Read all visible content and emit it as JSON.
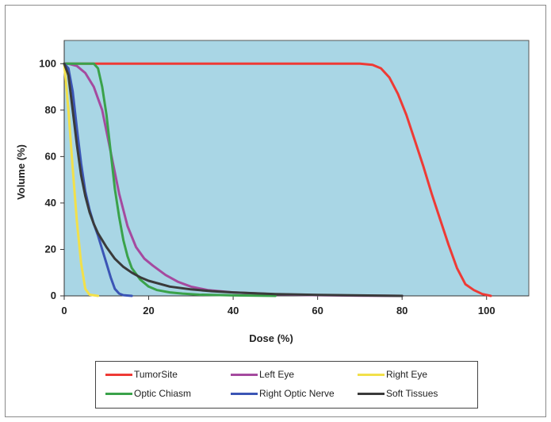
{
  "chart_data": {
    "type": "line",
    "title": "",
    "xlabel": "Dose (%)",
    "ylabel": "Volume (%)",
    "xlim": [
      0,
      110
    ],
    "ylim": [
      0,
      110
    ],
    "x_ticks": [
      0,
      20,
      40,
      60,
      80,
      100
    ],
    "y_ticks": [
      0,
      20,
      40,
      60,
      80,
      100
    ],
    "plot_background": "#a9d6e5",
    "grid": false,
    "legend_position": "bottom",
    "series": [
      {
        "name": "TumorSite",
        "color": "#ee3a35",
        "x": [
          0,
          10,
          30,
          50,
          70,
          73,
          75,
          77,
          79,
          81,
          83,
          85,
          87,
          89,
          91,
          93,
          95,
          97,
          99,
          101
        ],
        "y": [
          100,
          100,
          100,
          100,
          100,
          99.5,
          98,
          94,
          87,
          78,
          67,
          56,
          44,
          33,
          22,
          12,
          5,
          2.5,
          0.8,
          0
        ]
      },
      {
        "name": "Left Eye",
        "color": "#a54a9f",
        "x": [
          0,
          1,
          3,
          5,
          7,
          9,
          11,
          13,
          15,
          17,
          19,
          21,
          24,
          27,
          30,
          34,
          40,
          50,
          60,
          70,
          80
        ],
        "y": [
          100,
          100,
          99,
          96,
          90,
          80,
          62,
          44,
          30,
          21,
          16,
          13,
          9,
          6,
          4,
          2.5,
          1.5,
          0.7,
          0.3,
          0.1,
          0
        ]
      },
      {
        "name": "Right Eye",
        "color": "#f2e04a",
        "x": [
          0,
          1,
          2,
          3,
          4,
          5,
          6,
          8
        ],
        "y": [
          100,
          80,
          55,
          32,
          14,
          3,
          0.5,
          0
        ]
      },
      {
        "name": "Optic Chiasm",
        "color": "#3aa24a",
        "x": [
          0,
          4,
          7,
          8,
          9,
          10,
          11,
          12,
          13,
          14,
          15,
          16,
          18,
          20,
          22,
          25,
          28,
          32,
          40,
          50
        ],
        "y": [
          100,
          100,
          100,
          98,
          90,
          78,
          62,
          46,
          34,
          24,
          17,
          12,
          7,
          4,
          2.5,
          1.5,
          1,
          0.5,
          0.2,
          0
        ]
      },
      {
        "name": "Right Optic Nerve",
        "color": "#3b55b5",
        "x": [
          0,
          1,
          2,
          3,
          4,
          5,
          6,
          7,
          8,
          9,
          10,
          11,
          12,
          13,
          14,
          16
        ],
        "y": [
          100,
          98,
          88,
          72,
          57,
          45,
          37,
          31,
          26,
          20,
          14,
          8,
          3,
          1,
          0.3,
          0
        ]
      },
      {
        "name": "Soft Tissues",
        "color": "#3a3a3a",
        "x": [
          0,
          1,
          2,
          3,
          4,
          5,
          6,
          7,
          8,
          9,
          10,
          12,
          14,
          16,
          18,
          20,
          25,
          30,
          35,
          40,
          50,
          60,
          70,
          80
        ],
        "y": [
          100,
          95,
          80,
          65,
          52,
          43,
          36,
          31,
          27,
          24,
          21,
          16,
          12.5,
          10,
          8,
          6.5,
          4,
          2.8,
          2,
          1.5,
          0.8,
          0.4,
          0.2,
          0
        ]
      }
    ]
  }
}
